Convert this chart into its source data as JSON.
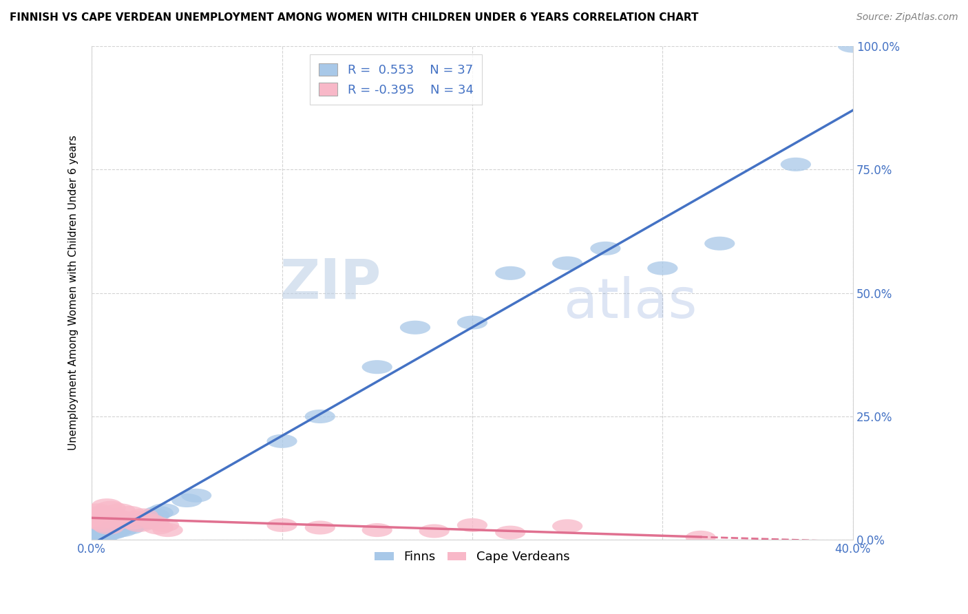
{
  "title": "FINNISH VS CAPE VERDEAN UNEMPLOYMENT AMONG WOMEN WITH CHILDREN UNDER 6 YEARS CORRELATION CHART",
  "source": "Source: ZipAtlas.com",
  "legend_r_blue": "0.553",
  "legend_n_blue": "37",
  "legend_r_pink": "-0.395",
  "legend_n_pink": "34",
  "blue_color": "#a8c8e8",
  "pink_color": "#f8b8c8",
  "blue_line_color": "#4472c4",
  "pink_line_color": "#e07090",
  "finns_label": "Finns",
  "cape_verdeans_label": "Cape Verdeans",
  "blue_points_x": [
    0.001,
    0.002,
    0.003,
    0.004,
    0.005,
    0.006,
    0.007,
    0.008,
    0.01,
    0.011,
    0.012,
    0.013,
    0.015,
    0.016,
    0.018,
    0.02,
    0.022,
    0.025,
    0.028,
    0.03,
    0.033,
    0.035,
    0.038,
    0.05,
    0.055,
    0.1,
    0.12,
    0.15,
    0.17,
    0.2,
    0.22,
    0.25,
    0.27,
    0.3,
    0.33,
    0.37,
    0.4
  ],
  "blue_points_y": [
    0.005,
    0.008,
    0.01,
    0.012,
    0.006,
    0.015,
    0.01,
    0.012,
    0.02,
    0.015,
    0.025,
    0.018,
    0.03,
    0.02,
    0.035,
    0.025,
    0.03,
    0.04,
    0.035,
    0.045,
    0.05,
    0.055,
    0.06,
    0.08,
    0.09,
    0.2,
    0.25,
    0.35,
    0.43,
    0.44,
    0.54,
    0.56,
    0.59,
    0.55,
    0.6,
    0.76,
    1.0
  ],
  "pink_points_x": [
    0.001,
    0.002,
    0.003,
    0.004,
    0.005,
    0.006,
    0.007,
    0.008,
    0.009,
    0.01,
    0.011,
    0.012,
    0.013,
    0.015,
    0.016,
    0.018,
    0.02,
    0.022,
    0.024,
    0.025,
    0.027,
    0.03,
    0.033,
    0.035,
    0.038,
    0.04,
    0.1,
    0.12,
    0.15,
    0.18,
    0.2,
    0.22,
    0.25,
    0.32
  ],
  "pink_points_y": [
    0.05,
    0.04,
    0.06,
    0.035,
    0.055,
    0.045,
    0.03,
    0.07,
    0.025,
    0.065,
    0.04,
    0.05,
    0.035,
    0.06,
    0.045,
    0.04,
    0.055,
    0.035,
    0.045,
    0.03,
    0.05,
    0.04,
    0.035,
    0.025,
    0.03,
    0.02,
    0.03,
    0.025,
    0.02,
    0.018,
    0.03,
    0.015,
    0.028,
    0.005
  ],
  "xlim": [
    0.0,
    0.4
  ],
  "ylim": [
    0.0,
    1.0
  ],
  "xtick_positions": [
    0.0,
    0.1,
    0.2,
    0.3,
    0.4
  ],
  "ytick_positions": [
    0.0,
    0.25,
    0.5,
    0.75,
    1.0
  ],
  "xtick_labels_show": [
    "0.0%",
    "",
    "",
    "",
    "40.0%"
  ],
  "ytick_labels_show": [
    "0.0%",
    "25.0%",
    "50.0%",
    "75.0%",
    "100.0%"
  ]
}
